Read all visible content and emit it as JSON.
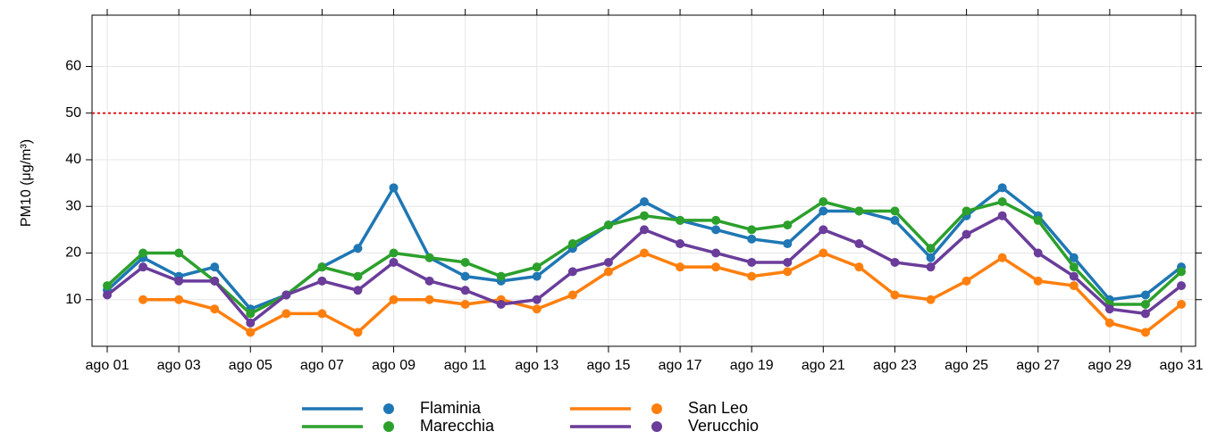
{
  "chart_data": {
    "type": "line",
    "y_label": "PM10 (μg/m³)",
    "categories": [
      "ago 01",
      null,
      "ago 03",
      null,
      "ago 05",
      null,
      "ago 07",
      null,
      "ago 09",
      null,
      "ago 11",
      null,
      "ago 13",
      null,
      "ago 15",
      null,
      "ago 17",
      null,
      "ago 19",
      null,
      "ago 21",
      null,
      "ago 23",
      null,
      "ago 25",
      null,
      "ago 27",
      null,
      "ago 29",
      null,
      "ago 31"
    ],
    "series": [
      {
        "name": "Flaminia",
        "color": "#1f77b4",
        "values": [
          12,
          19,
          15,
          17,
          8,
          11,
          17,
          21,
          34,
          19,
          15,
          14,
          15,
          21,
          26,
          31,
          27,
          25,
          23,
          22,
          29,
          29,
          27,
          19,
          28,
          34,
          28,
          19,
          10,
          11,
          17
        ]
      },
      {
        "name": "Marecchia",
        "color": "#2ca02c",
        "values": [
          13,
          20,
          20,
          14,
          7,
          11,
          17,
          15,
          20,
          19,
          18,
          15,
          17,
          22,
          26,
          28,
          27,
          27,
          25,
          26,
          31,
          29,
          29,
          21,
          29,
          31,
          27,
          17,
          9,
          9,
          16
        ]
      },
      {
        "name": "San Leo",
        "color": "#ff7f0e",
        "values": [
          null,
          10,
          10,
          8,
          3,
          7,
          7,
          3,
          10,
          10,
          9,
          10,
          8,
          11,
          16,
          20,
          17,
          17,
          15,
          16,
          20,
          17,
          11,
          10,
          14,
          19,
          14,
          13,
          5,
          3,
          9
        ]
      },
      {
        "name": "Verucchio",
        "color": "#6a3d9a",
        "values": [
          11,
          17,
          14,
          14,
          5,
          11,
          14,
          12,
          18,
          14,
          12,
          9,
          10,
          16,
          18,
          25,
          22,
          20,
          18,
          18,
          25,
          22,
          18,
          17,
          24,
          28,
          20,
          15,
          8,
          7,
          13
        ]
      }
    ],
    "ylim": [
      0,
      71
    ],
    "yticks": [
      10,
      20,
      30,
      40,
      50,
      60
    ],
    "grid": true,
    "reference_line": {
      "value": 50,
      "color": "#e41a1c"
    },
    "legend": "bottom"
  }
}
